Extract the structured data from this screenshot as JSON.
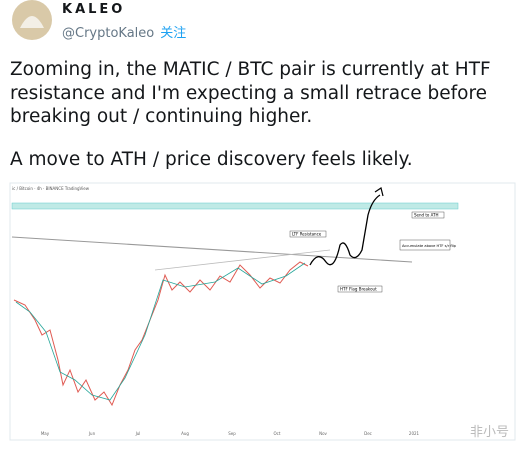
{
  "header": {
    "name": "KALEO",
    "handle": "@CryptoKaleo",
    "follow": "关注"
  },
  "tweet": {
    "paragraphs": [
      "Zooming in, the MATIC / BTC pair is currently at HTF resistance and I'm expecting a small retrace before breaking out / continuing higher.",
      "A move to ATH / price discovery feels likely."
    ]
  },
  "chart_image": {
    "title": "ic / Bitcoin · 4h · BINANCE  TradingView",
    "annotations": [
      "LTF Resistance",
      "Send to ATH",
      "Accumulate above HTF s/r flip",
      "HTF Flag Breakout"
    ],
    "x_labels": [
      "May",
      "Jun",
      "Jul",
      "Aug",
      "Sep",
      "Oct",
      "Nov",
      "Dec",
      "2021"
    ]
  },
  "watermark": "非小号"
}
